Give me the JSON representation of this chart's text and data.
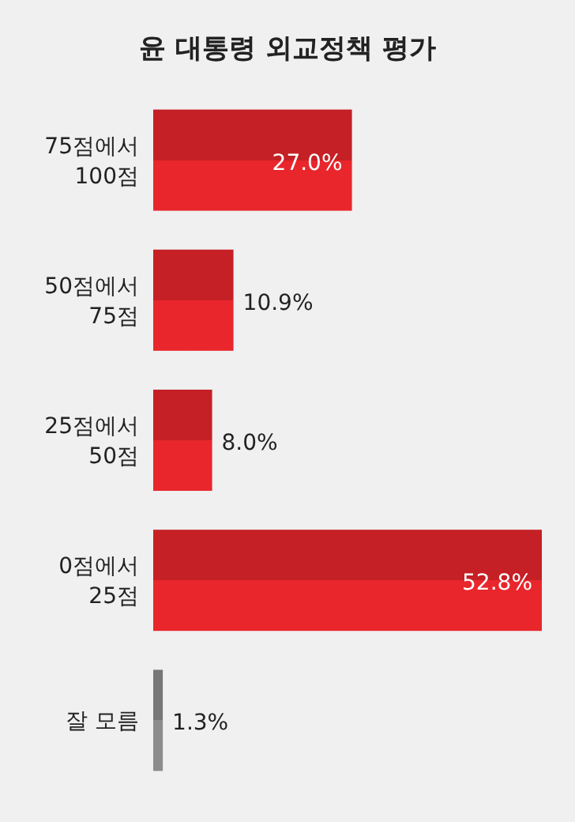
{
  "chart_data": {
    "type": "bar",
    "orientation": "horizontal",
    "title": "윤 대통령 외교정책 평가",
    "categories": [
      "75점에서\n100점",
      "50점에서\n75점",
      "25점에서\n50점",
      "0점에서\n25점",
      "잘 모름"
    ],
    "values": [
      27.0,
      10.9,
      8.0,
      52.8,
      1.3
    ],
    "colors": [
      "#e8262c",
      "#e8262c",
      "#e8262c",
      "#e8262c",
      "#8c8c8c"
    ],
    "value_labels": [
      "27.0%",
      "10.9%",
      "8.0%",
      "52.8%",
      "1.3%"
    ]
  }
}
